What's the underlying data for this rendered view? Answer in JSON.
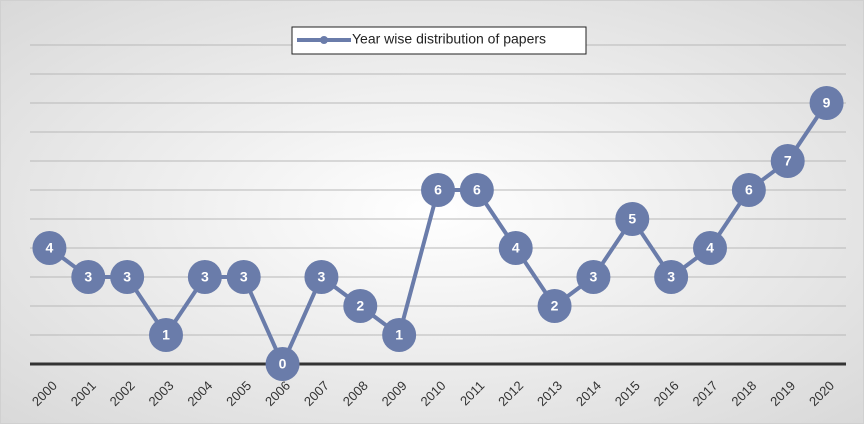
{
  "chart_data": {
    "type": "line",
    "categories": [
      "2000",
      "2001",
      "2002",
      "2003",
      "2004",
      "2005",
      "2006",
      "2007",
      "2008",
      "2009",
      "2010",
      "2011",
      "2012",
      "2013",
      "2014",
      "2015",
      "2016",
      "2017",
      "2018",
      "2019",
      "2020"
    ],
    "series": [
      {
        "name": "Year wise distribution of papers",
        "color": "#6a7caa",
        "values": [
          4,
          3,
          3,
          1,
          3,
          3,
          0,
          3,
          2,
          1,
          6,
          6,
          4,
          2,
          3,
          5,
          3,
          4,
          6,
          7,
          9
        ]
      }
    ],
    "ylim": [
      0,
      11
    ],
    "yticks": [
      0,
      1,
      2,
      3,
      4,
      5,
      6,
      7,
      8,
      9,
      10,
      11
    ],
    "grid": true,
    "legend": "top"
  }
}
